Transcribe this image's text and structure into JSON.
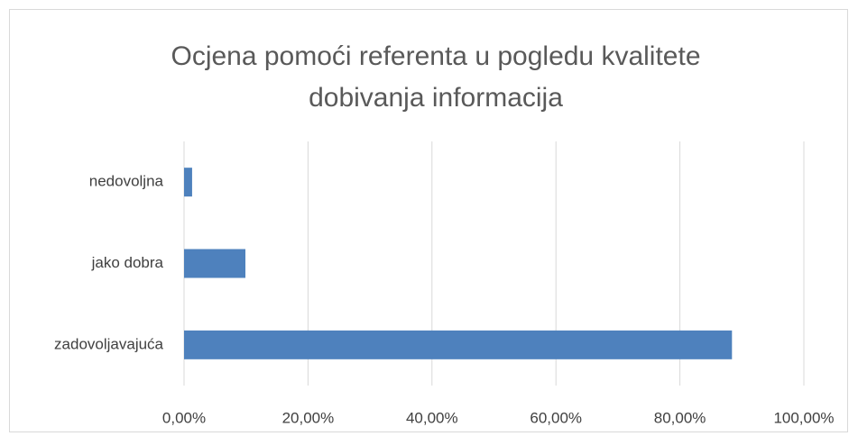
{
  "chart_data": {
    "type": "bar",
    "orientation": "horizontal",
    "title": "Ocjena pomoći referenta u pogledu kvalitete dobivanja informacija",
    "categories": [
      "nedovoljna",
      "jako dobra",
      "zadovoljavajuća"
    ],
    "values": [
      1.3,
      9.9,
      88.4
    ],
    "color": "#4e81bd",
    "xlim": [
      0,
      100
    ],
    "xticks": [
      {
        "value": 0,
        "label": "0,00%"
      },
      {
        "value": 20,
        "label": "20,00%"
      },
      {
        "value": 40,
        "label": "40,00%"
      },
      {
        "value": 60,
        "label": "60,00%"
      },
      {
        "value": 80,
        "label": "80,00%"
      },
      {
        "value": 100,
        "label": "100,00%"
      }
    ],
    "grid": true
  }
}
